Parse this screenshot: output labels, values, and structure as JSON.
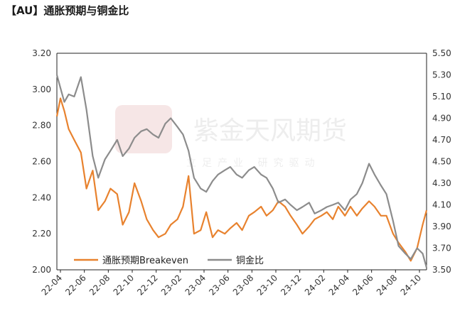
{
  "title": "【AU】通胀预期与铜金比",
  "colors": {
    "breakeven": "#E8822E",
    "copper_gold": "#8C8C8C",
    "axis": "#222222"
  },
  "chart_data": {
    "type": "line",
    "title": "【AU】通胀预期与铜金比",
    "x_tick_labels": [
      "22-04",
      "22-06",
      "22-08",
      "22-10",
      "22-12",
      "23-02",
      "23-04",
      "23-06",
      "23-08",
      "23-10",
      "23-12",
      "24-02",
      "24-04",
      "24-06",
      "24-08",
      "24-10"
    ],
    "y_left": {
      "ylim": [
        2.0,
        3.2
      ],
      "ticks": [
        "2.00",
        "2.20",
        "2.40",
        "2.60",
        "2.80",
        "3.00",
        "3.20"
      ]
    },
    "y_right": {
      "ylim": [
        3.5,
        5.5
      ],
      "ticks": [
        "3.50",
        "3.70",
        "3.90",
        "4.10",
        "4.30",
        "4.50",
        "4.70",
        "4.90",
        "5.10",
        "5.30",
        "5.50"
      ]
    },
    "legend_position": "bottom-left",
    "grid": false,
    "series": [
      {
        "name": "通胀预期Breakeven",
        "axis": "left",
        "x": [
          "2022-04-01",
          "2022-04-10",
          "2022-04-20",
          "2022-05-01",
          "2022-05-15",
          "2022-06-01",
          "2022-06-15",
          "2022-07-01",
          "2022-07-15",
          "2022-08-01",
          "2022-08-15",
          "2022-09-01",
          "2022-09-15",
          "2022-10-01",
          "2022-10-15",
          "2022-11-01",
          "2022-11-15",
          "2022-12-01",
          "2022-12-15",
          "2023-01-01",
          "2023-01-15",
          "2023-02-01",
          "2023-02-15",
          "2023-03-01",
          "2023-03-15",
          "2023-04-01",
          "2023-04-15",
          "2023-05-01",
          "2023-05-15",
          "2023-06-01",
          "2023-06-15",
          "2023-07-01",
          "2023-07-15",
          "2023-08-01",
          "2023-08-15",
          "2023-09-01",
          "2023-09-15",
          "2023-10-01",
          "2023-10-15",
          "2023-11-01",
          "2023-11-15",
          "2023-12-01",
          "2023-12-15",
          "2024-01-01",
          "2024-01-15",
          "2024-02-01",
          "2024-02-15",
          "2024-03-01",
          "2024-03-15",
          "2024-04-01",
          "2024-04-15",
          "2024-05-01",
          "2024-05-15",
          "2024-06-01",
          "2024-06-15",
          "2024-07-01",
          "2024-07-15",
          "2024-08-01",
          "2024-08-15",
          "2024-09-01",
          "2024-09-15",
          "2024-10-01",
          "2024-10-15",
          "2024-10-25"
        ],
        "values": [
          2.85,
          2.95,
          2.88,
          2.78,
          2.72,
          2.65,
          2.45,
          2.55,
          2.33,
          2.38,
          2.45,
          2.42,
          2.25,
          2.32,
          2.48,
          2.38,
          2.28,
          2.22,
          2.18,
          2.2,
          2.25,
          2.28,
          2.35,
          2.52,
          2.2,
          2.22,
          2.32,
          2.18,
          2.22,
          2.2,
          2.23,
          2.26,
          2.22,
          2.3,
          2.32,
          2.35,
          2.3,
          2.33,
          2.38,
          2.35,
          2.3,
          2.25,
          2.2,
          2.24,
          2.28,
          2.3,
          2.32,
          2.28,
          2.35,
          2.3,
          2.35,
          2.3,
          2.34,
          2.38,
          2.35,
          2.3,
          2.3,
          2.2,
          2.15,
          2.1,
          2.05,
          2.12,
          2.25,
          2.33
        ]
      },
      {
        "name": "铜金比",
        "axis": "right",
        "x": [
          "2022-04-01",
          "2022-04-10",
          "2022-04-20",
          "2022-05-01",
          "2022-05-15",
          "2022-06-01",
          "2022-06-15",
          "2022-07-01",
          "2022-07-15",
          "2022-08-01",
          "2022-08-15",
          "2022-09-01",
          "2022-09-15",
          "2022-10-01",
          "2022-10-15",
          "2022-11-01",
          "2022-11-15",
          "2022-12-01",
          "2022-12-15",
          "2023-01-01",
          "2023-01-15",
          "2023-02-01",
          "2023-02-15",
          "2023-03-01",
          "2023-03-15",
          "2023-04-01",
          "2023-04-15",
          "2023-05-01",
          "2023-05-15",
          "2023-06-01",
          "2023-06-15",
          "2023-07-01",
          "2023-07-15",
          "2023-08-01",
          "2023-08-15",
          "2023-09-01",
          "2023-09-15",
          "2023-10-01",
          "2023-10-15",
          "2023-11-01",
          "2023-11-15",
          "2023-12-01",
          "2023-12-15",
          "2024-01-01",
          "2024-01-15",
          "2024-02-01",
          "2024-02-15",
          "2024-03-01",
          "2024-03-15",
          "2024-04-01",
          "2024-04-15",
          "2024-05-01",
          "2024-05-15",
          "2024-06-01",
          "2024-06-15",
          "2024-07-01",
          "2024-07-15",
          "2024-08-01",
          "2024-08-15",
          "2024-09-01",
          "2024-09-15",
          "2024-10-01",
          "2024-10-15",
          "2024-10-25"
        ],
        "values": [
          5.3,
          5.18,
          5.05,
          5.12,
          5.1,
          5.28,
          4.98,
          4.55,
          4.35,
          4.52,
          4.6,
          4.7,
          4.55,
          4.62,
          4.72,
          4.78,
          4.8,
          4.75,
          4.72,
          4.85,
          4.9,
          4.82,
          4.75,
          4.6,
          4.35,
          4.25,
          4.22,
          4.32,
          4.38,
          4.42,
          4.45,
          4.38,
          4.35,
          4.42,
          4.45,
          4.38,
          4.35,
          4.25,
          4.12,
          4.15,
          4.1,
          4.05,
          4.08,
          4.12,
          4.02,
          4.05,
          4.08,
          4.1,
          4.12,
          4.05,
          4.15,
          4.2,
          4.3,
          4.48,
          4.38,
          4.28,
          4.2,
          3.95,
          3.72,
          3.65,
          3.6,
          3.7,
          3.65,
          3.52
        ]
      }
    ]
  }
}
